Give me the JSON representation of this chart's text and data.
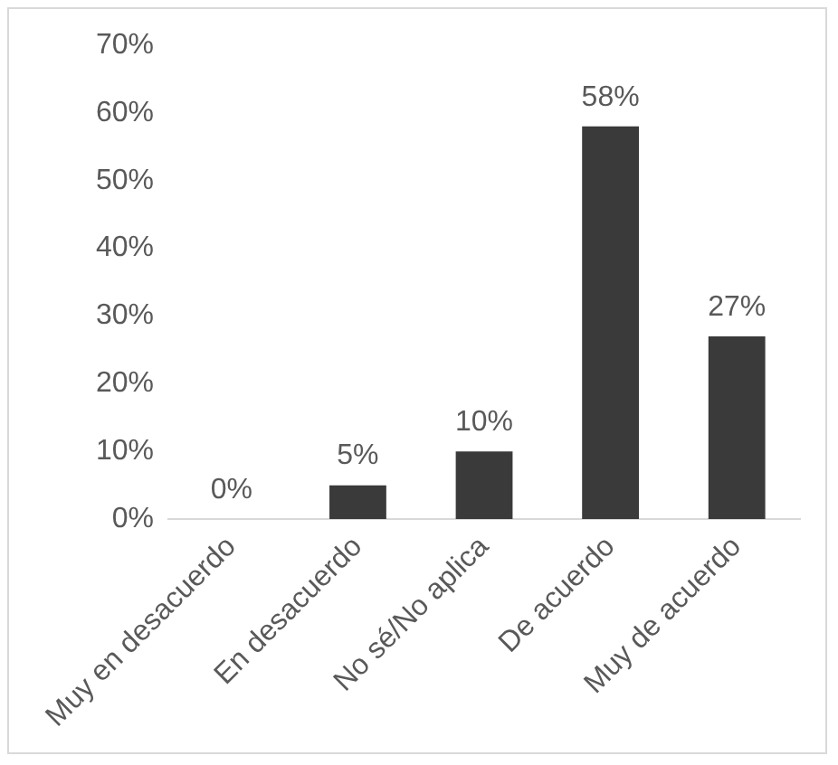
{
  "chart_data": {
    "type": "bar",
    "categories": [
      "Muy en desacuerdo",
      "En desacuerdo",
      "No sé/No aplica",
      "De acuerdo",
      "Muy de acuerdo"
    ],
    "values": [
      0,
      5,
      10,
      58,
      27
    ],
    "color": "#3a3a3a",
    "value_labels": [
      "0%",
      "5%",
      "10%",
      "58%",
      "27%"
    ],
    "ylim": [
      0,
      70
    ],
    "yticks": [
      {
        "value": 0,
        "label": "0%"
      },
      {
        "value": 10,
        "label": "10%"
      },
      {
        "value": 20,
        "label": "20%"
      },
      {
        "value": 30,
        "label": "30%"
      },
      {
        "value": 40,
        "label": "40%"
      },
      {
        "value": 50,
        "label": "50%"
      },
      {
        "value": 60,
        "label": "60%"
      },
      {
        "value": 70,
        "label": "70%"
      }
    ],
    "grid": false,
    "legend": false
  }
}
